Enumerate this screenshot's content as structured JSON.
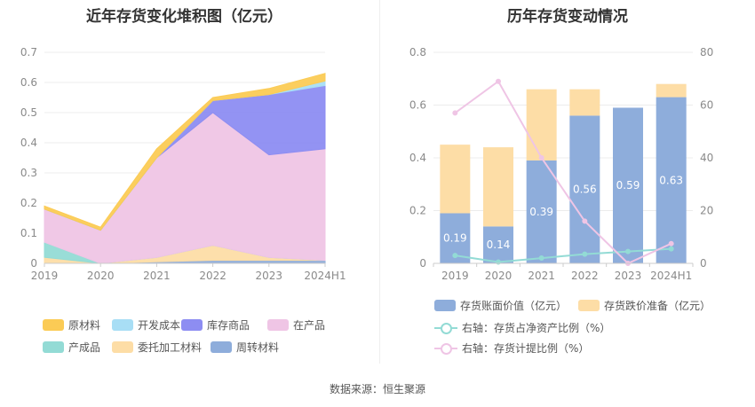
{
  "left_title": "近年存货变化堆积图（亿元）",
  "right_title": "历年存货变动情况",
  "source": "数据来源：恒生聚源",
  "chart_data": [
    {
      "type": "area",
      "stacked": true,
      "title": "近年存货变化堆积图（亿元）",
      "x": [
        "2019",
        "2020",
        "2021",
        "2022",
        "2023",
        "2024H1"
      ],
      "ylim": [
        0,
        0.7
      ],
      "yticks": [
        "0",
        "0.1",
        "0.2",
        "0.3",
        "0.4",
        "0.5",
        "0.6",
        "0.7"
      ],
      "grid": true,
      "legend_position": "bottom",
      "series": [
        {
          "name": "周转材料",
          "color": "#8EADDB",
          "values": [
            0.0,
            0.0,
            0.005,
            0.01,
            0.01,
            0.01
          ]
        },
        {
          "name": "委托加工材料",
          "color": "#FDDDA6",
          "values": [
            0.02,
            0.0,
            0.015,
            0.05,
            0.01,
            0.0
          ]
        },
        {
          "name": "产成品",
          "color": "#93DBD5",
          "values": [
            0.05,
            0.0,
            0.0,
            0.0,
            0.0,
            0.0
          ]
        },
        {
          "name": "在产品",
          "color": "#EFC5E5",
          "values": [
            0.11,
            0.11,
            0.33,
            0.44,
            0.34,
            0.37
          ]
        },
        {
          "name": "库存商品",
          "color": "#8D8DF2",
          "values": [
            0.0,
            0.0,
            0.0,
            0.04,
            0.2,
            0.21
          ]
        },
        {
          "name": "开发成本",
          "color": "#A8DEF5",
          "values": [
            0.0,
            0.0,
            0.0,
            0.0,
            0.0,
            0.015
          ]
        },
        {
          "name": "原材料",
          "color": "#FBCB55",
          "values": [
            0.01,
            0.01,
            0.03,
            0.01,
            0.02,
            0.025
          ]
        }
      ],
      "legend_order": [
        "原材料",
        "开发成本",
        "库存商品",
        "在产品",
        "产成品",
        "委托加工材料",
        "周转材料"
      ]
    },
    {
      "type": "bar",
      "stacked": true,
      "title": "历年存货变动情况",
      "categories": [
        "2019",
        "2020",
        "2021",
        "2022",
        "2023",
        "2024H1"
      ],
      "ylim": [
        0,
        0.8
      ],
      "yticks": [
        "0",
        "0.2",
        "0.4",
        "0.6",
        "0.8"
      ],
      "y2lim": [
        0,
        80
      ],
      "y2ticks": [
        "0",
        "20",
        "40",
        "60",
        "80"
      ],
      "grid": true,
      "legend_position": "bottom",
      "series": [
        {
          "name": "存货账面价值（亿元）",
          "type": "bar",
          "color": "#8EADDB",
          "axis": "left",
          "values": [
            0.19,
            0.14,
            0.39,
            0.56,
            0.59,
            0.63
          ],
          "labels": [
            "0.19",
            "0.14",
            "0.39",
            "0.56",
            "0.59",
            "0.63"
          ]
        },
        {
          "name": "存货跌价准备（亿元）",
          "type": "bar",
          "color": "#FDDDA6",
          "axis": "left",
          "values": [
            0.26,
            0.3,
            0.27,
            0.1,
            0.0,
            0.05
          ]
        },
        {
          "name": "右轴：存货占净资产比例（%）",
          "type": "line",
          "color": "#93DBD5",
          "axis": "right",
          "values": [
            3,
            0.5,
            2,
            3.5,
            4.5,
            5.5
          ]
        },
        {
          "name": "右轴：存货计提比例（%）",
          "type": "line",
          "color": "#EFC5E5",
          "axis": "right",
          "values": [
            57,
            69,
            40,
            16,
            0,
            7.5
          ]
        }
      ]
    }
  ]
}
